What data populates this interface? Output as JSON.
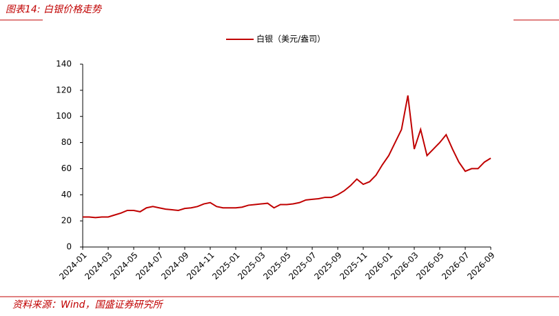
{
  "header": {
    "title": "图表14:  白银价格走势"
  },
  "chart_data": {
    "type": "line",
    "categories": [
      "2024-01",
      null,
      null,
      null,
      "2024-03",
      null,
      null,
      null,
      "2024-05",
      null,
      null,
      null,
      "2024-07",
      null,
      null,
      null,
      "2024-09",
      null,
      null,
      null,
      "2024-11",
      null,
      null,
      null,
      "2025-01",
      null,
      null,
      null,
      "2025-03",
      null,
      null,
      null,
      "2025-05",
      null,
      null,
      null,
      "2025-07",
      null,
      null,
      null,
      "2025-09",
      null,
      null,
      null,
      "2025-11",
      null,
      null,
      null,
      "2026-01",
      null,
      null,
      null,
      "2026-03",
      null,
      null,
      null,
      "2026-05",
      null,
      null,
      null,
      "2026-07",
      null,
      null,
      null,
      "2026-09"
    ],
    "series": [
      {
        "name": "白银（美元/盎司）",
        "color": "#c00000",
        "values": [
          23,
          23,
          22.5,
          23,
          23,
          24.5,
          26,
          28,
          28,
          27,
          30,
          31,
          30,
          29,
          28.5,
          28,
          29.5,
          30,
          31,
          33,
          34,
          31,
          30,
          30,
          30,
          30.5,
          32,
          32.5,
          33,
          33.5,
          30,
          32.5,
          32.5,
          33,
          34,
          36,
          36.5,
          37,
          38,
          38,
          40,
          43,
          47,
          52,
          48,
          50,
          55,
          63,
          70,
          80,
          90,
          116,
          75,
          90,
          70,
          75,
          80,
          86,
          75,
          65,
          58,
          60,
          60,
          65,
          68
        ]
      }
    ],
    "ylim": [
      0,
      140
    ],
    "yticks": [
      0,
      20,
      40,
      60,
      80,
      100,
      120,
      140
    ],
    "legend": "top"
  },
  "footer": {
    "source": "资料来源：Wind，国盛证券研究所"
  }
}
